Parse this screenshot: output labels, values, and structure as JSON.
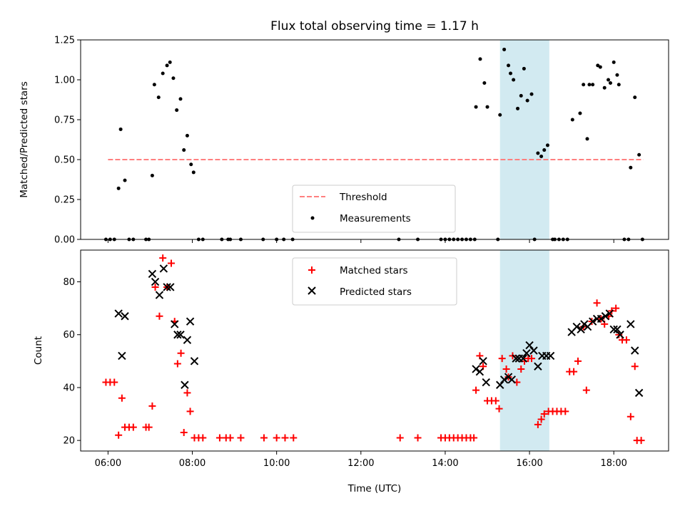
{
  "chart_data": [
    {
      "type": "scatter",
      "title": "Flux total observing time = 1.17 h",
      "xlabel": "",
      "ylabel": "Matched/Predicted stars",
      "xlim": [
        5.35,
        19.3
      ],
      "ylim": [
        0,
        1.25
      ],
      "yticks": [
        0,
        0.25,
        0.5,
        0.75,
        1.0,
        1.25
      ],
      "ytick_labels": [
        "0.00",
        "0.25",
        "0.50",
        "0.75",
        "1.00",
        "1.25"
      ],
      "xticks": [
        6,
        8,
        10,
        12,
        14,
        16,
        18
      ],
      "shaded_region": {
        "x_range": [
          15.3,
          16.47
        ],
        "color": "#add8e6"
      },
      "grid": false,
      "legend": {
        "location": "lower-center",
        "entries": [
          "Threshold",
          "Measurements"
        ]
      },
      "series": [
        {
          "name": "Threshold",
          "style": "dashed-line",
          "color": "#ff7f7f",
          "x": [
            6.0,
            18.7
          ],
          "y": [
            0.5,
            0.5
          ]
        },
        {
          "name": "Measurements",
          "style": "dot",
          "color": "#000000",
          "x": [
            5.95,
            6.05,
            6.15,
            6.25,
            6.3,
            6.4,
            6.5,
            6.6,
            6.9,
            6.97,
            7.05,
            7.1,
            7.2,
            7.3,
            7.4,
            7.47,
            7.55,
            7.63,
            7.72,
            7.8,
            7.88,
            7.97,
            8.03,
            8.15,
            8.25,
            8.7,
            8.85,
            8.9,
            9.15,
            9.68,
            10.0,
            10.17,
            10.38,
            12.9,
            13.35,
            13.9,
            14.0,
            14.1,
            14.2,
            14.3,
            14.4,
            14.5,
            14.6,
            14.7,
            14.73,
            14.83,
            14.93,
            15.0,
            15.25,
            15.3,
            15.4,
            15.5,
            15.55,
            15.62,
            15.72,
            15.8,
            15.87,
            15.95,
            16.05,
            16.12,
            16.2,
            16.28,
            16.35,
            16.43,
            16.55,
            16.6,
            16.7,
            16.8,
            16.9,
            17.02,
            17.2,
            17.28,
            17.37,
            17.42,
            17.5,
            17.62,
            17.68,
            17.78,
            17.87,
            17.92,
            18.0,
            18.08,
            18.12,
            18.25,
            18.35,
            18.4,
            18.5,
            18.6,
            18.68
          ],
          "y": [
            0,
            0,
            0,
            0.32,
            0.69,
            0.37,
            0,
            0,
            0,
            0,
            0.4,
            0.97,
            0.89,
            1.04,
            1.09,
            1.11,
            1.01,
            0.81,
            0.88,
            0.56,
            0.65,
            0.47,
            0.42,
            0,
            0,
            0,
            0,
            0,
            0,
            0,
            0,
            0,
            0,
            0,
            0,
            0,
            0,
            0,
            0,
            0,
            0,
            0,
            0,
            0,
            0.83,
            1.13,
            0.98,
            0.83,
            0,
            0.78,
            1.19,
            1.09,
            1.04,
            1.0,
            0.82,
            0.9,
            1.07,
            0.87,
            0.91,
            0,
            0.54,
            0.52,
            0.56,
            0.59,
            0,
            0,
            0,
            0,
            0,
            0.75,
            0.79,
            0.97,
            0.63,
            0.97,
            0.97,
            1.09,
            1.08,
            0.95,
            1.0,
            0.98,
            1.11,
            1.03,
            0.97,
            0,
            0,
            0.45,
            0.89,
            0.53,
            0
          ]
        }
      ]
    },
    {
      "type": "scatter",
      "title": "",
      "xlabel": "Time (UTC)",
      "ylabel": "Count",
      "xlim": [
        5.35,
        19.3
      ],
      "ylim": [
        16,
        92
      ],
      "yticks": [
        20,
        40,
        60,
        80
      ],
      "ytick_labels": [
        "20",
        "40",
        "60",
        "80"
      ],
      "xticks": [
        6,
        8,
        10,
        12,
        14,
        16,
        18
      ],
      "xtick_labels": [
        "06:00",
        "08:00",
        "10:00",
        "12:00",
        "14:00",
        "16:00",
        "18:00"
      ],
      "shaded_region": {
        "x_range": [
          15.3,
          16.47
        ],
        "color": "#add8e6"
      },
      "grid": false,
      "legend": {
        "location": "upper-center",
        "entries": [
          "Matched stars",
          "Predicted stars"
        ]
      },
      "series": [
        {
          "name": "Matched stars",
          "style": "plus",
          "color": "#ff0000",
          "x": [
            5.95,
            6.05,
            6.15,
            6.25,
            6.33,
            6.4,
            6.5,
            6.6,
            6.9,
            6.97,
            7.05,
            7.12,
            7.22,
            7.3,
            7.4,
            7.5,
            7.58,
            7.65,
            7.73,
            7.8,
            7.88,
            7.95,
            8.05,
            8.15,
            8.25,
            8.65,
            8.8,
            8.9,
            9.15,
            9.7,
            10.0,
            10.2,
            10.4,
            12.93,
            13.35,
            13.9,
            14.0,
            14.1,
            14.2,
            14.3,
            14.4,
            14.5,
            14.6,
            14.68,
            14.73,
            14.82,
            14.9,
            15.0,
            15.1,
            15.2,
            15.28,
            15.35,
            15.45,
            15.5,
            15.6,
            15.7,
            15.8,
            15.88,
            15.97,
            16.05,
            16.2,
            16.28,
            16.35,
            16.45,
            16.55,
            16.65,
            16.75,
            16.85,
            16.95,
            17.05,
            17.15,
            17.28,
            17.35,
            17.48,
            17.6,
            17.7,
            17.78,
            17.88,
            17.95,
            18.05,
            18.12,
            18.2,
            18.3,
            18.4,
            18.5,
            18.55,
            18.65
          ],
          "y": [
            42,
            42,
            42,
            22,
            36,
            25,
            25,
            25,
            25,
            25,
            33,
            78,
            67,
            89,
            78,
            87,
            65,
            49,
            53,
            23,
            38,
            31,
            21,
            21,
            21,
            21,
            21,
            21,
            21,
            21,
            21,
            21,
            21,
            21,
            21,
            21,
            21,
            21,
            21,
            21,
            21,
            21,
            21,
            21,
            39,
            52,
            48,
            35,
            35,
            35,
            32,
            51,
            47,
            44,
            52,
            42,
            47,
            50,
            51,
            51,
            26,
            28,
            30,
            31,
            31,
            31,
            31,
            31,
            46,
            46,
            50,
            63,
            39,
            65,
            72,
            66,
            64,
            67,
            69,
            70,
            60,
            58,
            58,
            29,
            48,
            20,
            20
          ]
        },
        {
          "name": "Predicted stars",
          "style": "x",
          "color": "#000000",
          "x": [
            6.25,
            6.33,
            6.4,
            7.05,
            7.12,
            7.22,
            7.32,
            7.4,
            7.48,
            7.58,
            7.65,
            7.72,
            7.82,
            7.88,
            7.95,
            8.05,
            14.73,
            14.82,
            14.9,
            14.97,
            15.3,
            15.4,
            15.5,
            15.58,
            15.68,
            15.75,
            15.85,
            15.93,
            16.0,
            16.1,
            16.2,
            16.3,
            16.4,
            16.5,
            17.0,
            17.12,
            17.22,
            17.3,
            17.38,
            17.5,
            17.6,
            17.7,
            17.8,
            17.9,
            18.0,
            18.08,
            18.15,
            18.4,
            18.5,
            18.6
          ],
          "y": [
            68,
            52,
            67,
            83,
            80,
            75,
            85,
            78,
            78,
            64,
            60,
            60,
            41,
            58,
            65,
            50,
            47,
            46,
            50,
            42,
            41,
            43,
            44,
            43,
            51,
            51,
            51,
            53,
            56,
            54,
            48,
            52,
            52,
            52,
            61,
            63,
            62,
            64,
            63,
            65,
            66,
            66,
            67,
            68,
            62,
            62,
            60,
            64,
            54,
            38
          ]
        }
      ]
    }
  ]
}
